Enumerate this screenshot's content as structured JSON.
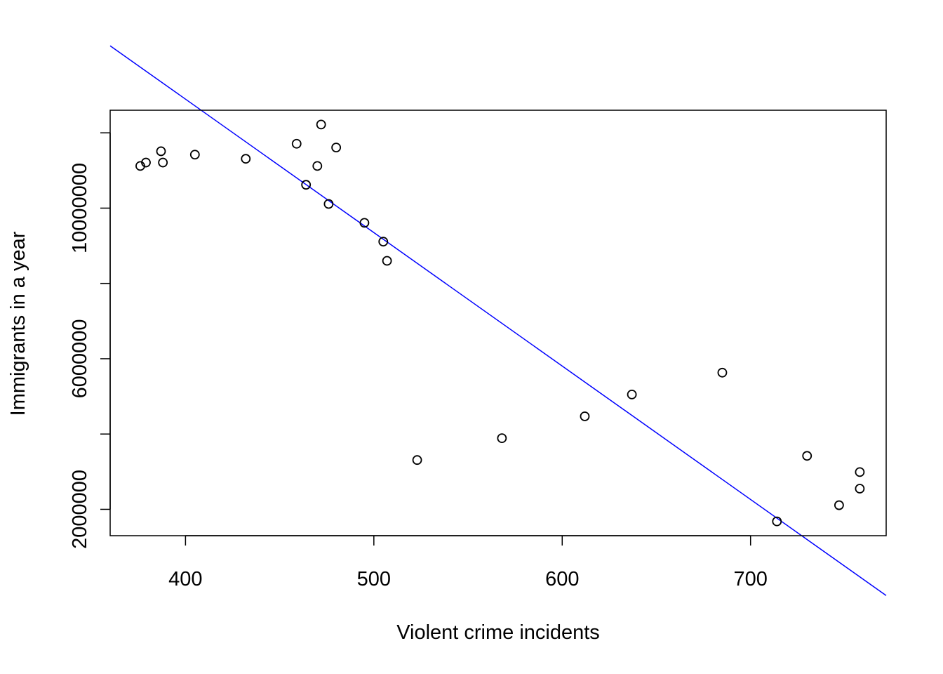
{
  "chart_data": {
    "type": "scatter",
    "title": "",
    "xlabel": "Violent crime incidents",
    "ylabel": "Immigrants in a year",
    "xlim": [
      360,
      772
    ],
    "ylim": [
      1300000,
      12600000
    ],
    "x_ticks": [
      400,
      500,
      600,
      700
    ],
    "x_tick_labels": [
      "400",
      "500",
      "600",
      "700"
    ],
    "y_ticks": [
      2000000,
      4000000,
      6000000,
      8000000,
      10000000,
      12000000
    ],
    "y_tick_labels": [
      "2000000",
      "",
      "6000000",
      "",
      "10000000",
      ""
    ],
    "grid": false,
    "legend": "none",
    "point_color": "#000000",
    "points": [
      {
        "x": 376,
        "y": 11120000
      },
      {
        "x": 379,
        "y": 11210000
      },
      {
        "x": 387,
        "y": 11510000
      },
      {
        "x": 388,
        "y": 11210000
      },
      {
        "x": 405,
        "y": 11420000
      },
      {
        "x": 432,
        "y": 11310000
      },
      {
        "x": 459,
        "y": 11710000
      },
      {
        "x": 464,
        "y": 10620000
      },
      {
        "x": 470,
        "y": 11120000
      },
      {
        "x": 472,
        "y": 12220000
      },
      {
        "x": 476,
        "y": 10110000
      },
      {
        "x": 480,
        "y": 11610000
      },
      {
        "x": 495,
        "y": 9610000
      },
      {
        "x": 505,
        "y": 9110000
      },
      {
        "x": 507,
        "y": 8600000
      },
      {
        "x": 523,
        "y": 3310000
      },
      {
        "x": 568,
        "y": 3890000
      },
      {
        "x": 612,
        "y": 4470000
      },
      {
        "x": 637,
        "y": 5050000
      },
      {
        "x": 685,
        "y": 5630000
      },
      {
        "x": 714,
        "y": 1680000
      },
      {
        "x": 730,
        "y": 3420000
      },
      {
        "x": 747,
        "y": 2110000
      },
      {
        "x": 758,
        "y": 2550000
      },
      {
        "x": 758,
        "y": 2990000
      }
    ],
    "fit_line": {
      "color": "#0000FF",
      "intercept": 27070000,
      "slope": -35440
    }
  }
}
